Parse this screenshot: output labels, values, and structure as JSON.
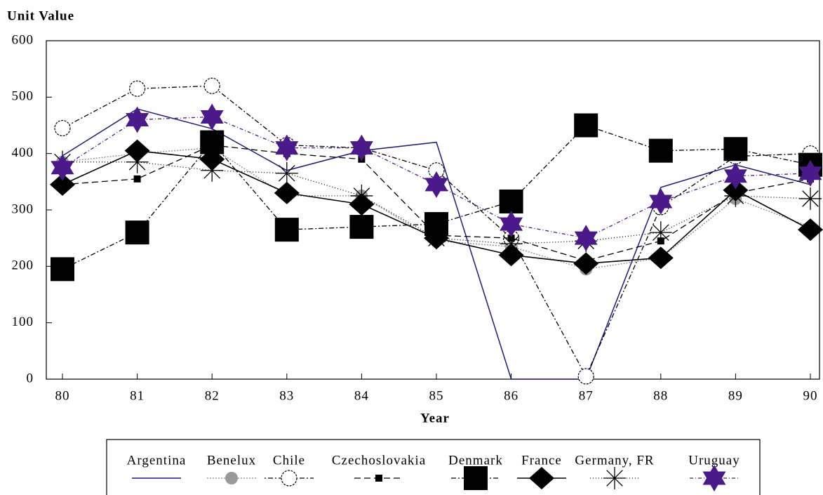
{
  "chart_data": {
    "type": "line",
    "title": "Unit Value",
    "x_label": "Year",
    "categories": [
      "80",
      "81",
      "82",
      "83",
      "84",
      "85",
      "86",
      "87",
      "88",
      "89",
      "90"
    ],
    "ylim": [
      0,
      600
    ],
    "yticks": [
      0,
      100,
      200,
      300,
      400,
      500,
      600
    ],
    "series": [
      {
        "name": "Argentina",
        "color": "#1c1c7c",
        "values": [
          396,
          479,
          444,
          370,
          405,
          420,
          0,
          0,
          340,
          380,
          345
        ]
      },
      {
        "name": "Benelux",
        "color": "#999999",
        "values": [
          385,
          400,
          410,
          325,
          325,
          245,
          235,
          195,
          215,
          320,
          270
        ]
      },
      {
        "name": "Chile",
        "color": "#000000",
        "values": [
          445,
          515,
          520,
          415,
          410,
          370,
          250,
          5,
          305,
          395,
          400
        ]
      },
      {
        "name": "Czechoslovakia",
        "color": "#000000",
        "values": [
          345,
          355,
          415,
          400,
          390,
          255,
          250,
          210,
          245,
          330,
          355
        ]
      },
      {
        "name": "Denmark",
        "color": "#000000",
        "values": [
          195,
          260,
          420,
          265,
          270,
          275,
          315,
          450,
          405,
          408,
          380
        ]
      },
      {
        "name": "France",
        "color": "#000000",
        "values": [
          345,
          405,
          390,
          330,
          310,
          250,
          220,
          205,
          215,
          335,
          265
        ]
      },
      {
        "name": "Germany, FR",
        "color": "#000000",
        "values": [
          385,
          385,
          370,
          365,
          325,
          250,
          240,
          245,
          260,
          325,
          320
        ]
      },
      {
        "name": "Uruguay",
        "color": "#4b1a8a",
        "values": [
          375,
          460,
          465,
          410,
          410,
          345,
          275,
          250,
          315,
          360,
          365
        ]
      }
    ]
  }
}
